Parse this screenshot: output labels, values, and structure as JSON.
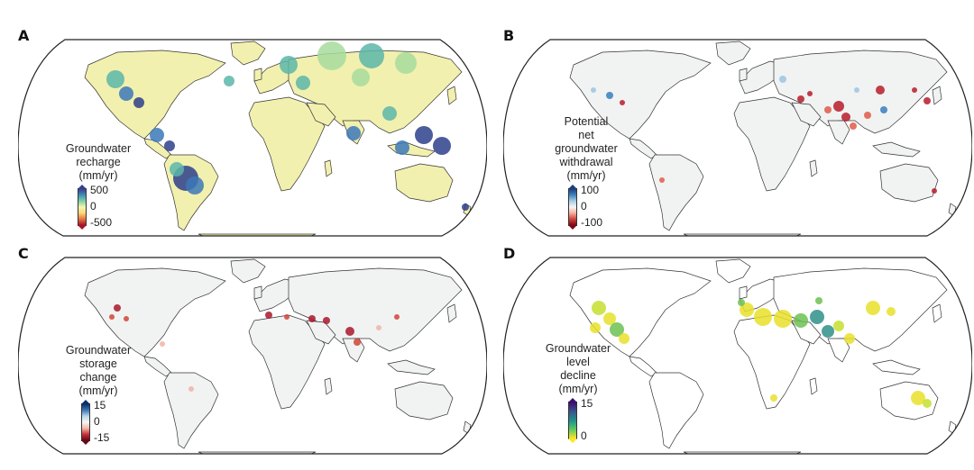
{
  "panels": [
    {
      "letter": "A",
      "legend": {
        "title_lines": [
          "Groundwater",
          "recharge",
          "(mm/yr)"
        ],
        "ticks": [
          "500",
          "0",
          "-500"
        ],
        "colormap": [
          "#3b3e8c",
          "#3f8fb6",
          "#7fcfa6",
          "#f4f6ae",
          "#fbd57a",
          "#e8743d",
          "#a5142a"
        ]
      },
      "land_color": "#f2f0ae",
      "hotspot_colors": [
        "#2d3f8c",
        "#3c78b8",
        "#5cb6a9",
        "#a7dc9c"
      ]
    },
    {
      "letter": "B",
      "legend": {
        "title_lines": [
          "Potential",
          "net",
          "groundwater",
          "withdrawal",
          "(mm/yr)"
        ],
        "ticks": [
          "100",
          "0",
          "-100"
        ],
        "colormap": [
          "#1f3e7a",
          "#3f83bf",
          "#a9cde4",
          "#f5f5f5",
          "#f3b09a",
          "#d3433a",
          "#7a0a16"
        ]
      },
      "land_color": "#f1f2f2",
      "hotspot_colors": [
        "#b71c2b",
        "#e05a48",
        "#3a7ec0",
        "#9cc5e3"
      ]
    },
    {
      "letter": "C",
      "legend": {
        "title_lines": [
          "Groundwater",
          "storage",
          "change",
          "(mm/yr)"
        ],
        "ticks": [
          "15",
          "0",
          "-15"
        ],
        "colormap": [
          "#0c2f6a",
          "#3c7ab8",
          "#bcd7ea",
          "#f6f6f6",
          "#f2b8a6",
          "#c8303a",
          "#66071a"
        ]
      },
      "land_color": "#f1f2f2",
      "hotspot_colors": [
        "#a9182a",
        "#d24436",
        "#f0b4a8"
      ]
    },
    {
      "letter": "D",
      "legend": {
        "title_lines": [
          "Groundwater",
          "level",
          "decline",
          "(mm/yr)"
        ],
        "ticks": [
          "15",
          "0"
        ],
        "colormap": [
          "#3b0f6f",
          "#3b528b",
          "#21908d",
          "#5ec962",
          "#fde725"
        ]
      },
      "land_color": "#ffffff",
      "hotspot_colors": [
        "#e9e12a",
        "#c6df30",
        "#6cc152",
        "#2f8f8a"
      ]
    }
  ]
}
